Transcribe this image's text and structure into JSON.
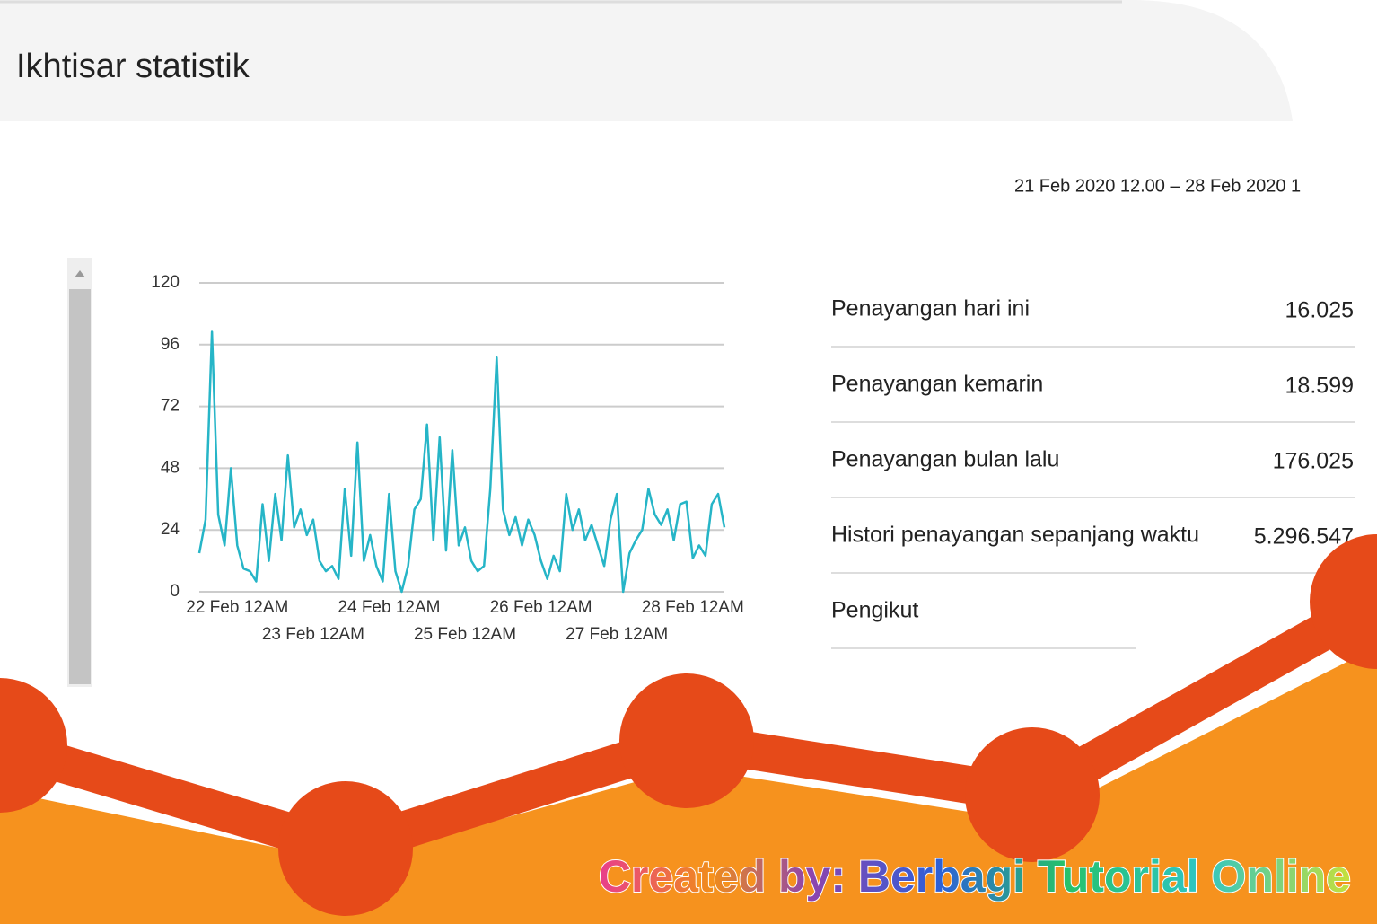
{
  "header": {
    "title": "Ikhtisar statistik"
  },
  "date_range": "21 Feb 2020 12.00 – 28 Feb 2020 1",
  "chart_data": {
    "type": "line",
    "categories": [
      null,
      null,
      null,
      null,
      null,
      null,
      "22 Feb 12AM",
      null,
      null,
      null,
      null,
      null,
      null,
      null,
      null,
      null,
      null,
      null,
      "23 Feb 12AM",
      null,
      null,
      null,
      null,
      null,
      null,
      null,
      null,
      null,
      null,
      null,
      "24 Feb 12AM",
      null,
      null,
      null,
      null,
      null,
      null,
      null,
      null,
      null,
      null,
      null,
      "25 Feb 12AM",
      null,
      null,
      null,
      null,
      null,
      null,
      null,
      null,
      null,
      null,
      null,
      "26 Feb 12AM",
      null,
      null,
      null,
      null,
      null,
      null,
      null,
      null,
      null,
      null,
      null,
      "27 Feb 12AM",
      null,
      null,
      null,
      null,
      null,
      null,
      null,
      null,
      null,
      null,
      null,
      "28 Feb 12AM",
      null,
      null,
      null,
      null,
      null
    ],
    "values": [
      15,
      28,
      101,
      30,
      18,
      48,
      18,
      9,
      8,
      4,
      34,
      12,
      38,
      20,
      53,
      25,
      32,
      22,
      28,
      12,
      8,
      10,
      5,
      40,
      14,
      58,
      12,
      22,
      10,
      4,
      38,
      8,
      0,
      10,
      32,
      36,
      65,
      20,
      60,
      16,
      55,
      18,
      25,
      12,
      8,
      10,
      40,
      91,
      32,
      22,
      29,
      18,
      28,
      22,
      12,
      5,
      14,
      8,
      38,
      24,
      32,
      20,
      26,
      18,
      10,
      28,
      38,
      0,
      15,
      20,
      24,
      40,
      30,
      26,
      32,
      20,
      34,
      35,
      13,
      18,
      14,
      34,
      38,
      25
    ],
    "color": "#26b5c7",
    "ylim": [
      0,
      120
    ],
    "yticks": [
      0,
      24,
      48,
      72,
      96,
      120
    ],
    "grid": true
  },
  "stats": {
    "rows": [
      {
        "label": "Penayangan hari ini",
        "value": "16.025"
      },
      {
        "label": "Penayangan kemarin",
        "value": "18.599"
      },
      {
        "label": "Penayangan bulan lalu",
        "value": "176.025"
      },
      {
        "label": "Histori penayangan sepanjang waktu",
        "value": "5.296.547"
      },
      {
        "label": "Pengikut"
      }
    ]
  },
  "watermark": "Created by: Berbagi Tutorial Online"
}
